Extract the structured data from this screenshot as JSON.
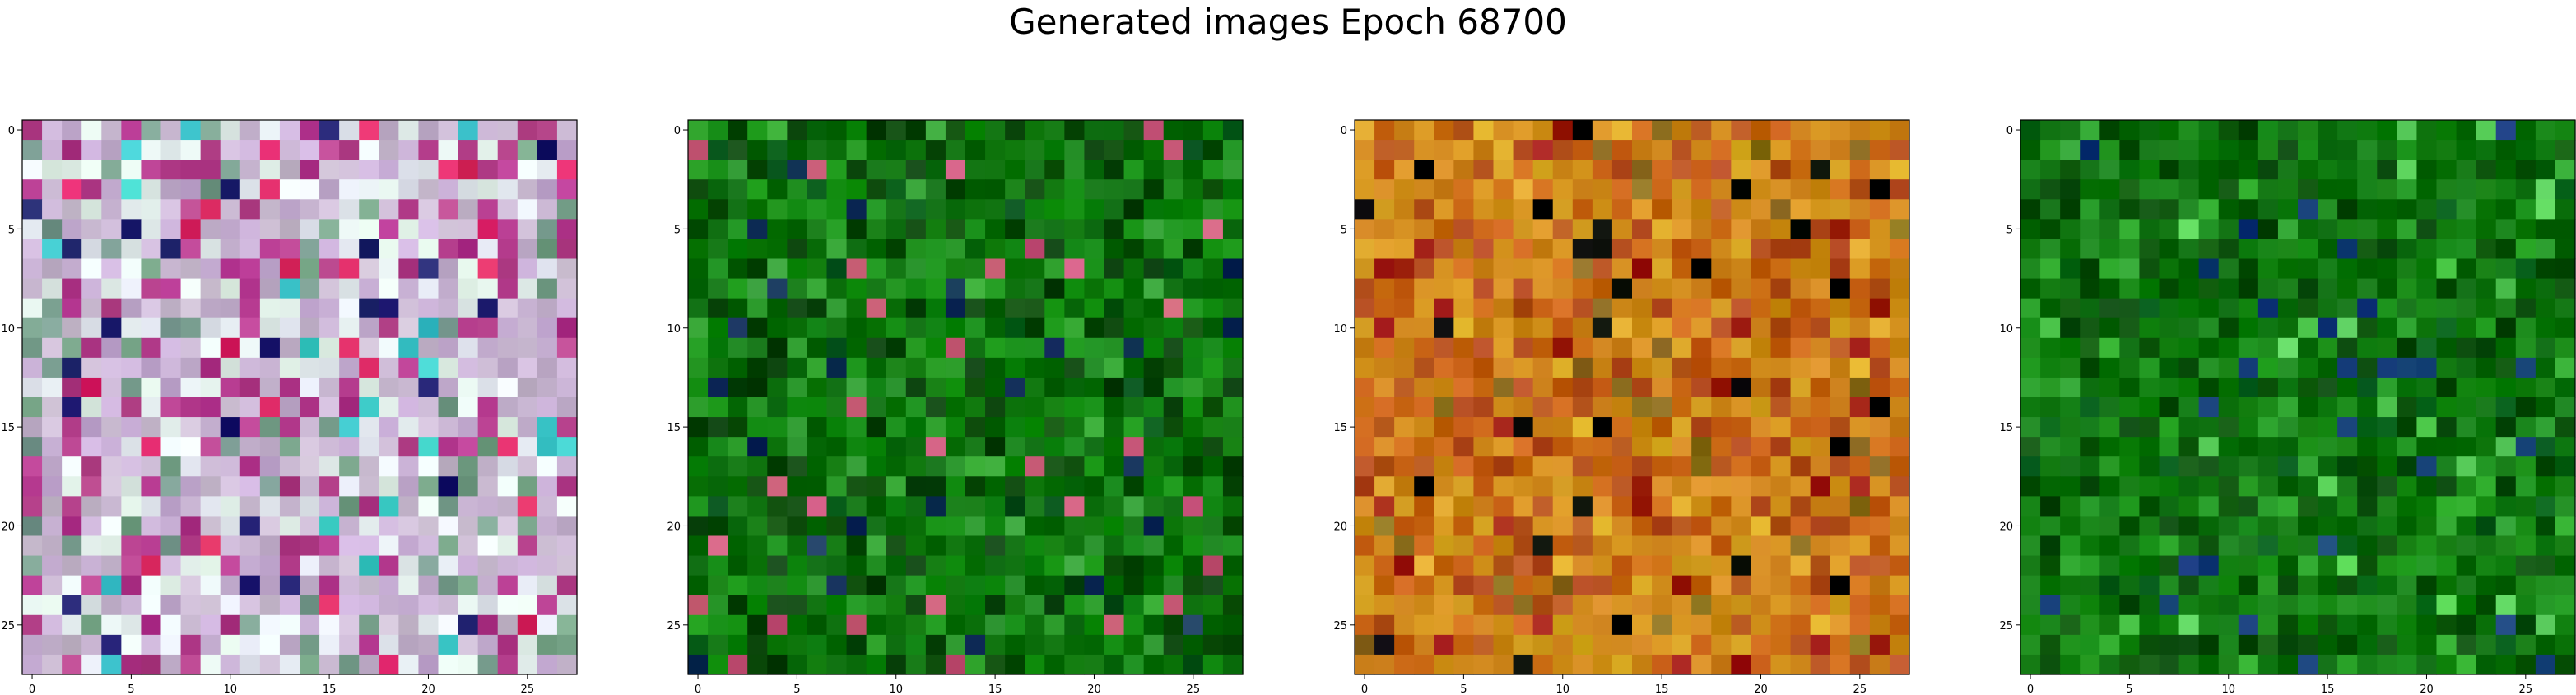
{
  "figure": {
    "title": "Generated images Epoch 68700"
  },
  "chart_data": [
    {
      "type": "heatmap",
      "palette": "pastel-mix",
      "grid_size": 28,
      "x_ticks": [
        0,
        5,
        10,
        15,
        20,
        25
      ],
      "y_ticks": [
        0,
        5,
        10,
        15,
        20,
        25
      ],
      "xlim": [
        -0.5,
        27.5
      ],
      "ylim": [
        27.5,
        -0.5
      ],
      "dominant_colors": [
        "#c8b4d2",
        "#e6f0f0",
        "#b43c8c",
        "#78a08c",
        "#dc2864",
        "#3cc8c8",
        "#1e1e6e"
      ]
    },
    {
      "type": "heatmap",
      "palette": "green",
      "grid_size": 28,
      "x_ticks": [
        0,
        5,
        10,
        15,
        20,
        25
      ],
      "y_ticks": [
        0,
        5,
        10,
        15,
        20,
        25
      ],
      "xlim": [
        -0.5,
        27.5
      ],
      "ylim": [
        27.5,
        -0.5
      ],
      "dominant_colors": [
        "#0a6e0a",
        "#148c14",
        "#0a460a",
        "#32a032",
        "#005014",
        "#c85a78",
        "#14325a"
      ]
    },
    {
      "type": "heatmap",
      "palette": "orange",
      "grid_size": 28,
      "x_ticks": [
        0,
        5,
        10,
        15,
        20,
        25
      ],
      "y_ticks": [
        0,
        5,
        10,
        15,
        20,
        25
      ],
      "xlim": [
        -0.5,
        27.5
      ],
      "ylim": [
        27.5,
        -0.5
      ],
      "dominant_colors": [
        "#d28c1e",
        "#c86414",
        "#b4501e",
        "#dcaa28",
        "#a01e14",
        "#8c6e1e",
        "#000000"
      ]
    },
    {
      "type": "heatmap",
      "palette": "green",
      "grid_size": 28,
      "x_ticks": [
        0,
        5,
        10,
        15,
        20,
        25
      ],
      "y_ticks": [
        0,
        5,
        10,
        15,
        20,
        25
      ],
      "xlim": [
        -0.5,
        27.5
      ],
      "ylim": [
        27.5,
        -0.5
      ],
      "dominant_colors": [
        "#0a6e0a",
        "#148214",
        "#0a500a",
        "#28a028",
        "#005a14",
        "#5ad25a",
        "#143c78"
      ]
    }
  ]
}
